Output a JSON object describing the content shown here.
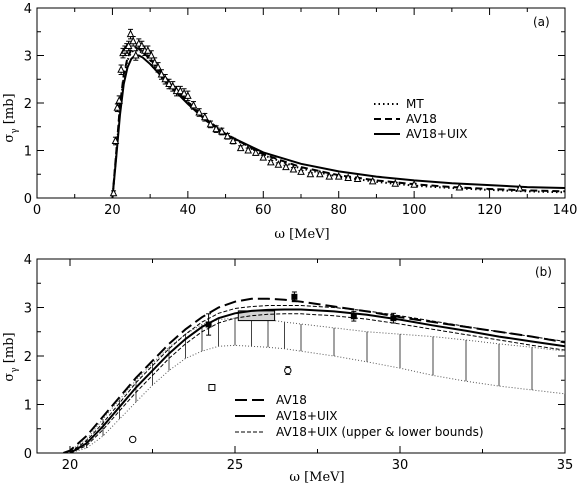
{
  "chart_data": [
    {
      "type": "line",
      "panel_label": "(a)",
      "xlabel": "ω [MeV]",
      "ylabel": "σγ [mb]",
      "ylabel_main": "σ",
      "ylabel_sub": "γ",
      "ylabel_rest": " [mb]",
      "xlim": [
        0,
        140
      ],
      "ylim": [
        0,
        4
      ],
      "xticks": [
        0,
        20,
        40,
        60,
        80,
        100,
        120,
        140
      ],
      "yticks": [
        0,
        1,
        2,
        3,
        4
      ],
      "legend_position": "right",
      "series": [
        {
          "name": "MT",
          "style": "dotted",
          "x": [
            20,
            21,
            22,
            23,
            24,
            25,
            26,
            27,
            28,
            30,
            32,
            35,
            40,
            45,
            50,
            60,
            70,
            80,
            90,
            100,
            110,
            120,
            130,
            140
          ],
          "y": [
            0,
            0.9,
            1.9,
            2.55,
            2.9,
            3.07,
            3.12,
            3.1,
            3.05,
            2.9,
            2.72,
            2.45,
            2.03,
            1.65,
            1.34,
            0.9,
            0.62,
            0.45,
            0.34,
            0.26,
            0.21,
            0.17,
            0.14,
            0.12
          ]
        },
        {
          "name": "AV18",
          "style": "dashed",
          "x": [
            20,
            21,
            22,
            23,
            24,
            25,
            26,
            27,
            28,
            30,
            32,
            35,
            40,
            45,
            50,
            60,
            70,
            80,
            90,
            100,
            110,
            120,
            130,
            140
          ],
          "y": [
            0,
            0.95,
            1.95,
            2.6,
            2.95,
            3.12,
            3.17,
            3.14,
            3.08,
            2.92,
            2.73,
            2.45,
            2.02,
            1.65,
            1.35,
            0.92,
            0.65,
            0.48,
            0.37,
            0.29,
            0.23,
            0.19,
            0.16,
            0.14
          ]
        },
        {
          "name": "AV18+UIX",
          "style": "solid",
          "x": [
            20,
            21,
            22,
            23,
            24,
            25,
            26,
            27,
            28,
            30,
            32,
            35,
            40,
            45,
            50,
            60,
            70,
            80,
            90,
            100,
            110,
            120,
            130,
            140
          ],
          "y": [
            0,
            0.85,
            1.75,
            2.4,
            2.75,
            2.93,
            3.0,
            3.0,
            2.96,
            2.82,
            2.65,
            2.38,
            1.98,
            1.62,
            1.34,
            0.96,
            0.72,
            0.56,
            0.45,
            0.37,
            0.31,
            0.27,
            0.23,
            0.21
          ]
        }
      ],
      "data_points": {
        "marker": "open-triangle",
        "x": [
          20.3,
          20.8,
          21.3,
          21.8,
          22.3,
          22.8,
          23.3,
          23.8,
          24.3,
          24.8,
          25.5,
          26.2,
          27,
          27.8,
          28.6,
          29.4,
          30.3,
          31.2,
          32.1,
          33,
          34,
          35,
          36,
          37,
          38,
          39,
          40,
          41.5,
          43,
          44.5,
          46,
          47.5,
          49,
          50.5,
          52,
          54,
          56,
          58,
          60,
          62,
          64,
          66,
          68,
          70,
          72.5,
          75,
          77.5,
          80,
          82.5,
          85,
          89,
          95,
          100,
          112,
          128
        ],
        "y": [
          0.1,
          1.2,
          1.9,
          2.05,
          2.7,
          3.05,
          3.1,
          3.15,
          3.2,
          3.45,
          3.3,
          3.0,
          3.25,
          3.2,
          3.1,
          3.1,
          3.0,
          2.85,
          2.75,
          2.6,
          2.5,
          2.4,
          2.35,
          2.25,
          2.25,
          2.2,
          2.15,
          1.95,
          1.8,
          1.7,
          1.55,
          1.45,
          1.4,
          1.3,
          1.2,
          1.05,
          1.0,
          0.95,
          0.85,
          0.75,
          0.7,
          0.65,
          0.6,
          0.55,
          0.5,
          0.5,
          0.45,
          0.45,
          0.42,
          0.4,
          0.35,
          0.3,
          0.28,
          0.22,
          0.2
        ],
        "err": [
          0.05,
          0.08,
          0.08,
          0.1,
          0.1,
          0.1,
          0.1,
          0.1,
          0.1,
          0.1,
          0.1,
          0.1,
          0.1,
          0.1,
          0.1,
          0.1,
          0.1,
          0.1,
          0.1,
          0.1,
          0.1,
          0.1,
          0.1,
          0.1,
          0.1,
          0.1,
          0.1,
          0.08,
          0.08,
          0.08,
          0.07,
          0.07,
          0.07,
          0.06,
          0.06,
          0.05,
          0.05,
          0.05,
          0.05,
          0.04,
          0.04,
          0.04,
          0.04,
          0.03,
          0.03,
          0.03,
          0.03,
          0.03,
          0.03,
          0.03,
          0.03,
          0.03,
          0.03,
          0.02,
          0.02
        ]
      }
    },
    {
      "type": "line",
      "panel_label": "(b)",
      "xlabel": "ω [MeV]",
      "ylabel": "σγ [mb]",
      "ylabel_main": "σ",
      "ylabel_sub": "γ",
      "ylabel_rest": " [mb]",
      "xlim": [
        19,
        35
      ],
      "ylim": [
        0,
        4
      ],
      "xticks": [
        20,
        25,
        30,
        35
      ],
      "yticks": [
        0,
        1,
        2,
        3,
        4
      ],
      "legend_position": "bottom-left",
      "series": [
        {
          "name": "AV18",
          "style": "long-dashed",
          "x": [
            19.8,
            20,
            20.5,
            21,
            21.5,
            22,
            22.5,
            23,
            23.5,
            24,
            24.5,
            25,
            25.5,
            26,
            26.5,
            27,
            28,
            29,
            30,
            31,
            32,
            33,
            34,
            35
          ],
          "y": [
            0,
            0.05,
            0.35,
            0.75,
            1.15,
            1.55,
            1.9,
            2.25,
            2.55,
            2.8,
            3.0,
            3.12,
            3.18,
            3.18,
            3.16,
            3.12,
            3.02,
            2.92,
            2.8,
            2.7,
            2.6,
            2.5,
            2.4,
            2.28
          ]
        },
        {
          "name": "AV18+UIX",
          "style": "solid",
          "x": [
            20,
            20.5,
            21,
            21.5,
            22,
            22.5,
            23,
            23.5,
            24,
            24.5,
            25,
            25.5,
            26,
            26.5,
            27,
            28,
            29,
            30,
            31,
            32,
            33,
            34,
            35
          ],
          "y": [
            0,
            0.2,
            0.55,
            0.95,
            1.35,
            1.7,
            2.05,
            2.35,
            2.6,
            2.78,
            2.88,
            2.93,
            2.95,
            2.96,
            2.96,
            2.92,
            2.85,
            2.75,
            2.63,
            2.52,
            2.4,
            2.3,
            2.2
          ]
        },
        {
          "name": "AV18+UIX (upper & lower bounds)",
          "style": "thin-dashed",
          "x": [
            20,
            20.5,
            21,
            21.5,
            22,
            22.5,
            23,
            23.5,
            24,
            24.5,
            25,
            25.5,
            26,
            26.5,
            27,
            28,
            29,
            30,
            31,
            32,
            33,
            34,
            35
          ],
          "y": [
            0.02,
            0.25,
            0.62,
            1.03,
            1.45,
            1.8,
            2.15,
            2.45,
            2.7,
            2.88,
            2.98,
            3.02,
            3.04,
            3.04,
            3.04,
            3.0,
            2.93,
            2.83,
            2.72,
            2.61,
            2.5,
            2.4,
            2.3
          ],
          "y_lower": [
            0,
            0.15,
            0.48,
            0.87,
            1.25,
            1.6,
            1.95,
            2.25,
            2.5,
            2.68,
            2.78,
            2.83,
            2.86,
            2.87,
            2.87,
            2.83,
            2.76,
            2.66,
            2.55,
            2.44,
            2.33,
            2.22,
            2.12
          ]
        }
      ],
      "error_band": {
        "style": "vertical-hatch",
        "x": [
          20.0,
          20.5,
          21.0,
          21.5,
          22.0,
          22.5,
          23.0,
          23.5,
          24.0,
          24.5,
          25.0,
          25.5,
          26.0,
          26.5,
          27.0,
          28.0,
          29.0,
          30.0,
          31.0,
          32.0,
          33.0,
          34.0,
          35.0
        ],
        "upper": [
          0.05,
          0.28,
          0.7,
          1.1,
          1.5,
          1.85,
          2.18,
          2.45,
          2.65,
          2.75,
          2.78,
          2.78,
          2.75,
          2.7,
          2.66,
          2.58,
          2.5,
          2.45,
          2.4,
          2.33,
          2.25,
          2.18,
          2.1
        ],
        "lower": [
          0.0,
          0.1,
          0.35,
          0.7,
          1.05,
          1.4,
          1.7,
          1.95,
          2.1,
          2.2,
          2.22,
          2.2,
          2.18,
          2.15,
          2.1,
          2.0,
          1.88,
          1.75,
          1.6,
          1.48,
          1.38,
          1.3,
          1.22
        ]
      },
      "shaded_box": {
        "x": [
          25.1,
          26.2
        ],
        "y": [
          2.73,
          2.93
        ]
      },
      "data_points": [
        {
          "marker": "filled-square",
          "x": [
            24.2,
            26.8,
            28.6,
            29.8
          ],
          "y": [
            2.65,
            3.22,
            2.82,
            2.78
          ],
          "err": [
            0.22,
            0.1,
            0.1,
            0.1
          ]
        },
        {
          "marker": "open-square",
          "x": [
            24.3
          ],
          "y": [
            1.35
          ],
          "err": [
            0.05
          ]
        },
        {
          "marker": "open-circle",
          "x": [
            21.9,
            26.6
          ],
          "y": [
            0.28,
            1.7
          ],
          "err": [
            0.04,
            0.08
          ]
        }
      ]
    }
  ],
  "colors": {
    "ink": "#000000",
    "band": "#888888",
    "box_fill": "#d4d4d4",
    "background": "#ffffff"
  }
}
